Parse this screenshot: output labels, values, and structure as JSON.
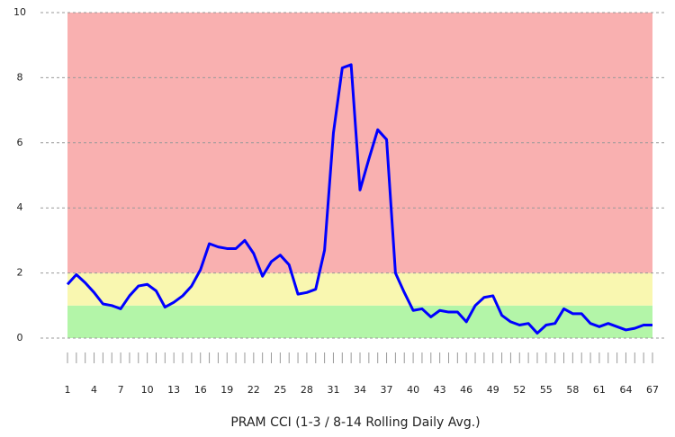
{
  "chart_data": {
    "type": "line",
    "xlabel": "PRAM CCI (1-3 / 8-14 Rolling Daily Avg.)",
    "x": [
      1,
      2,
      3,
      4,
      5,
      6,
      7,
      8,
      9,
      10,
      11,
      12,
      13,
      14,
      15,
      16,
      17,
      18,
      19,
      20,
      21,
      22,
      23,
      24,
      25,
      26,
      27,
      28,
      29,
      30,
      31,
      32,
      33,
      34,
      35,
      36,
      37,
      38,
      39,
      40,
      41,
      42,
      43,
      44,
      45,
      46,
      47,
      48,
      49,
      50,
      51,
      52,
      53,
      54,
      55,
      56,
      57,
      58,
      59,
      60,
      61,
      62,
      63,
      64,
      65,
      66,
      67
    ],
    "series": [
      {
        "color": "#0000ff",
        "values": [
          1.65,
          1.95,
          1.7,
          1.4,
          1.05,
          1.0,
          0.9,
          1.3,
          1.6,
          1.65,
          1.45,
          0.95,
          1.1,
          1.3,
          1.6,
          2.1,
          2.9,
          2.8,
          2.75,
          2.75,
          3.0,
          2.6,
          1.9,
          2.35,
          2.55,
          2.25,
          1.35,
          1.4,
          1.5,
          2.7,
          6.3,
          8.3,
          8.4,
          4.55,
          5.5,
          6.4,
          6.1,
          2.0,
          1.4,
          0.85,
          0.9,
          0.65,
          0.85,
          0.8,
          0.8,
          0.5,
          1.0,
          1.25,
          1.3,
          0.7,
          0.5,
          0.4,
          0.45,
          0.15,
          0.4,
          0.45,
          0.9,
          0.75,
          0.75,
          0.45,
          0.35,
          0.45,
          0.35,
          0.25,
          0.3,
          0.4,
          0.4
        ]
      }
    ],
    "bands": [
      {
        "from": 0,
        "to": 1,
        "color": "#b3f5a8"
      },
      {
        "from": 1,
        "to": 2,
        "color": "#f9f7b0"
      },
      {
        "from": 2,
        "to": 10,
        "color": "#f9b0b0"
      }
    ],
    "xlim": [
      1,
      67
    ],
    "xticks": [
      1,
      4,
      7,
      10,
      13,
      16,
      19,
      22,
      25,
      28,
      31,
      34,
      37,
      40,
      43,
      46,
      49,
      52,
      55,
      58,
      61,
      64,
      67
    ],
    "ylim": [
      0,
      10
    ],
    "yticks": [
      0,
      2,
      4,
      6,
      8,
      10
    ],
    "grid": true
  }
}
